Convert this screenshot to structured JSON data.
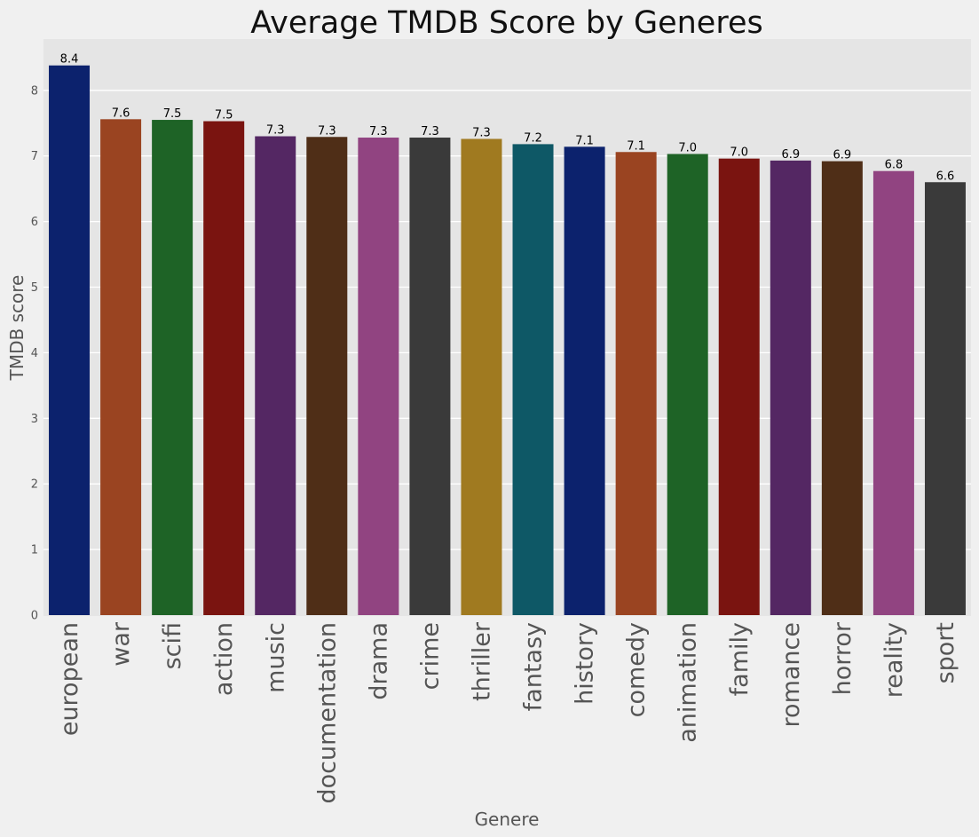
{
  "chart_data": {
    "type": "bar",
    "title": "Average TMDB Score by Generes",
    "xlabel": "Genere",
    "ylabel": "TMDB score",
    "categories": [
      "european",
      "war",
      "scifi",
      "action",
      "music",
      "documentation",
      "drama",
      "crime",
      "thriller",
      "fantasy",
      "history",
      "comedy",
      "animation",
      "family",
      "romance",
      "horror",
      "reality",
      "sport"
    ],
    "values": [
      8.38,
      7.56,
      7.55,
      7.53,
      7.3,
      7.29,
      7.28,
      7.28,
      7.26,
      7.18,
      7.14,
      7.06,
      7.03,
      6.96,
      6.93,
      6.92,
      6.77,
      6.6
    ],
    "data_labels": [
      "8.4",
      "7.6",
      "7.5",
      "7.5",
      "7.3",
      "7.3",
      "7.3",
      "7.3",
      "7.3",
      "7.2",
      "7.1",
      "7.1",
      "7.0",
      "7.0",
      "6.9",
      "6.9",
      "6.8",
      "6.6"
    ],
    "colors": [
      "#0c226d",
      "#9a4421",
      "#1e6326",
      "#7a1410",
      "#542763",
      "#4f2e17",
      "#914481",
      "#3a3a3a",
      "#a07a20",
      "#0e5866",
      "#0c226d",
      "#9a4421",
      "#1e6326",
      "#7a1410",
      "#542763",
      "#4f2e17",
      "#914481",
      "#3a3a3a"
    ],
    "yticks": [
      "0",
      "1",
      "2",
      "3",
      "4",
      "5",
      "6",
      "7",
      "8"
    ],
    "ylim": [
      0,
      8.8
    ],
    "grid": true,
    "plot_background": "#e5e5e5",
    "page_background": "#f0f0f0"
  }
}
